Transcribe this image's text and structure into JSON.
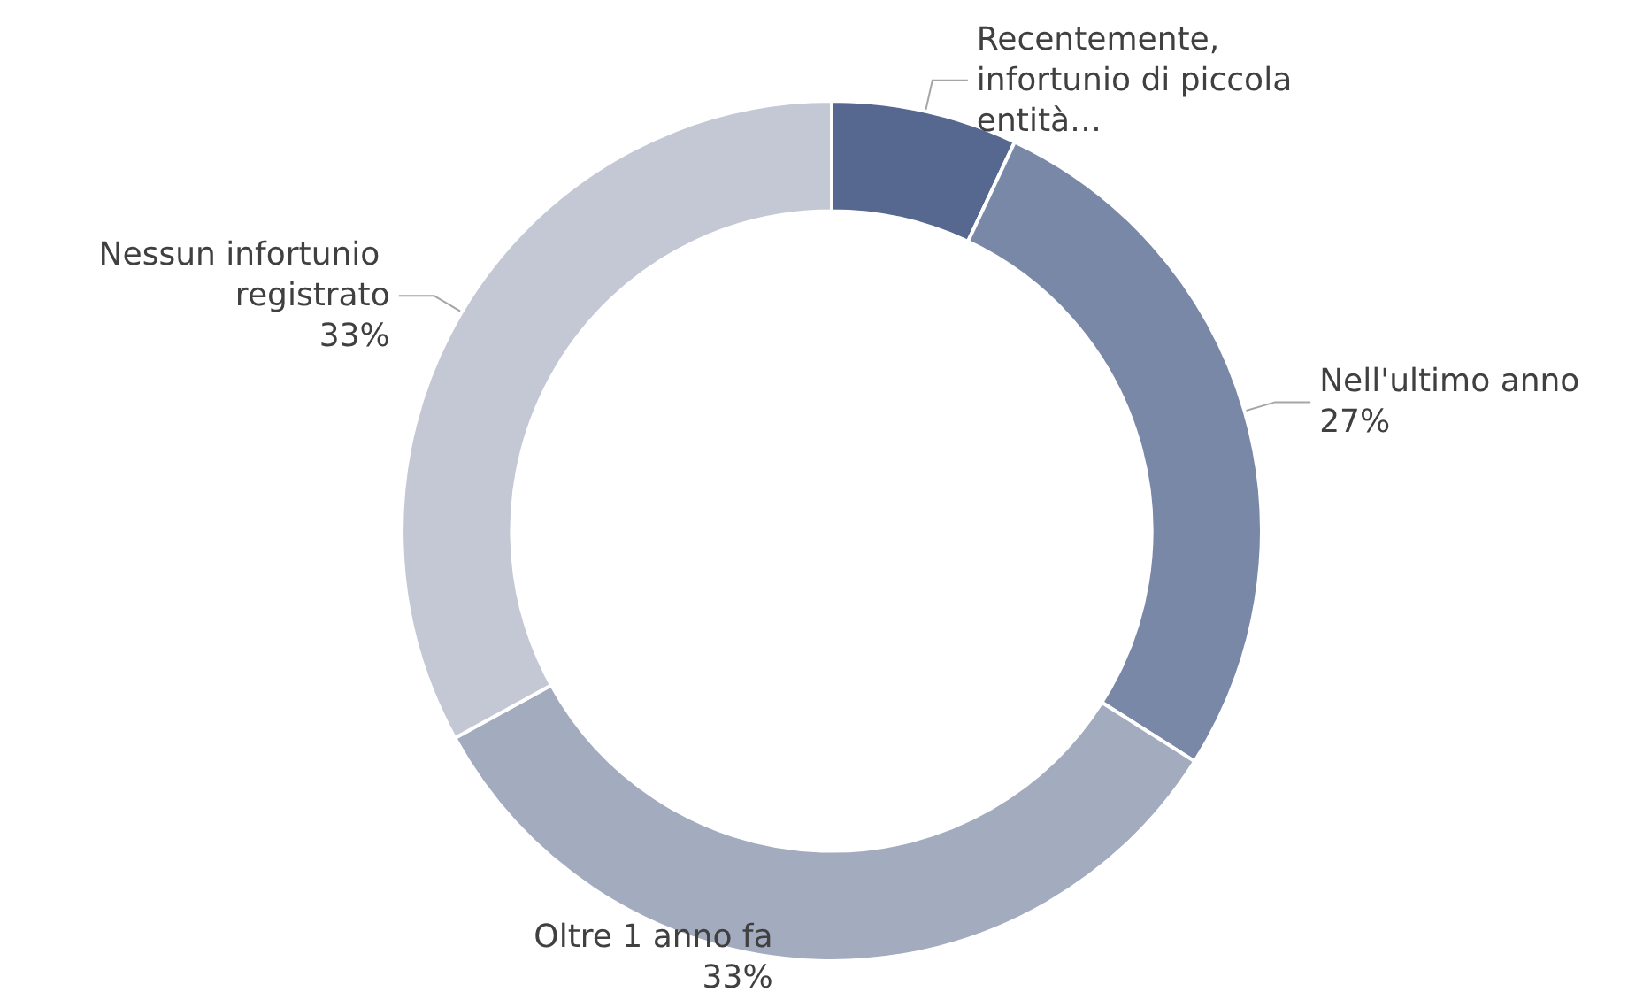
{
  "chart_data": {
    "type": "donut",
    "categories": [
      "Recentemente, infortunio di piccola entità…",
      "Nell'ultimo anno",
      "Oltre 1 anno fa",
      "Nessun infortunio registrato"
    ],
    "values": [
      7,
      27,
      33,
      33
    ],
    "value_labels": [
      null,
      "27%",
      "33%",
      "33%"
    ],
    "colors": [
      "#56688f",
      "#7a88a8",
      "#a3abbf",
      "#c3c8d4"
    ],
    "legend": false
  }
}
